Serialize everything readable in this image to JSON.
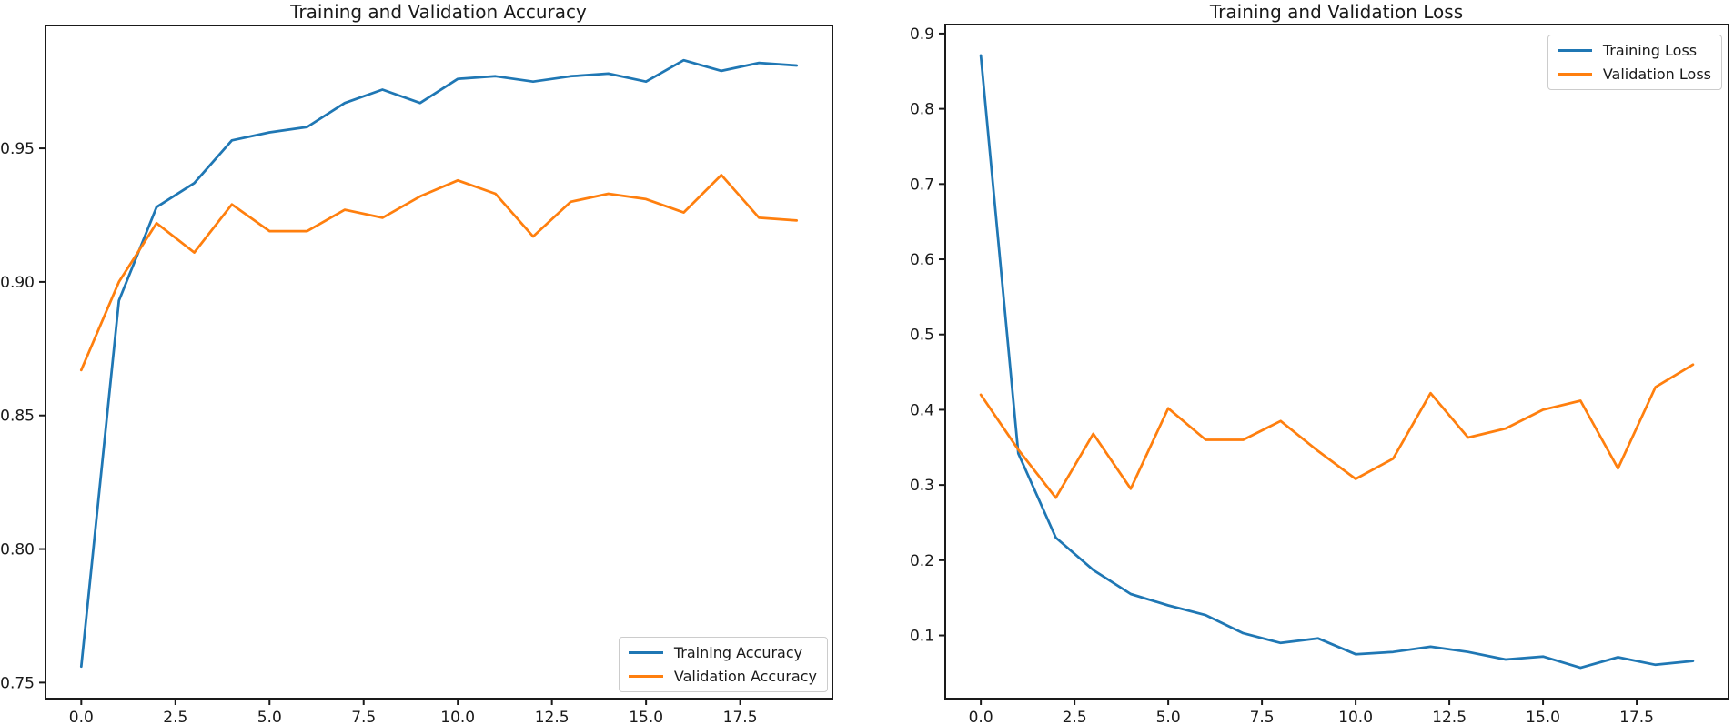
{
  "figure": {
    "background": "#ffffff",
    "text_color": "#1a1a1a",
    "accent_blue": "#1f77b4",
    "accent_orange": "#ff7f0e"
  },
  "chart_data": [
    {
      "type": "line",
      "title": "Training and Validation Accuracy",
      "xlabel": "",
      "ylabel": "",
      "grid": false,
      "legend_position": "lower right",
      "x": [
        0,
        1,
        2,
        3,
        4,
        5,
        6,
        7,
        8,
        9,
        10,
        11,
        12,
        13,
        14,
        15,
        16,
        17,
        18,
        19
      ],
      "series": [
        {
          "name": "Training Accuracy",
          "color": "#1f77b4",
          "values": [
            0.756,
            0.893,
            0.928,
            0.937,
            0.953,
            0.956,
            0.958,
            0.967,
            0.972,
            0.967,
            0.976,
            0.977,
            0.975,
            0.977,
            0.978,
            0.975,
            0.983,
            0.979,
            0.982,
            0.981
          ]
        },
        {
          "name": "Validation Accuracy",
          "color": "#ff7f0e",
          "values": [
            0.867,
            0.9,
            0.922,
            0.911,
            0.929,
            0.919,
            0.919,
            0.927,
            0.924,
            0.932,
            0.938,
            0.933,
            0.917,
            0.93,
            0.933,
            0.931,
            0.926,
            0.94,
            0.924,
            0.923
          ]
        }
      ],
      "xlim": [
        -0.95,
        19.95
      ],
      "ylim": [
        0.744,
        0.996
      ],
      "xticks": [
        "0.0",
        "2.5",
        "5.0",
        "7.5",
        "10.0",
        "12.5",
        "15.0",
        "17.5"
      ],
      "yticks": [
        "0.75",
        "0.80",
        "0.85",
        "0.90",
        "0.95"
      ]
    },
    {
      "type": "line",
      "title": "Training and Validation Loss",
      "xlabel": "",
      "ylabel": "",
      "grid": false,
      "legend_position": "upper right",
      "x": [
        0,
        1,
        2,
        3,
        4,
        5,
        6,
        7,
        8,
        9,
        10,
        11,
        12,
        13,
        14,
        15,
        16,
        17,
        18,
        19
      ],
      "series": [
        {
          "name": "Training Loss",
          "color": "#1f77b4",
          "values": [
            0.871,
            0.342,
            0.23,
            0.187,
            0.155,
            0.14,
            0.127,
            0.103,
            0.09,
            0.096,
            0.075,
            0.078,
            0.085,
            0.078,
            0.068,
            0.072,
            0.057,
            0.071,
            0.061,
            0.066
          ]
        },
        {
          "name": "Validation Loss",
          "color": "#ff7f0e",
          "values": [
            0.42,
            0.347,
            0.283,
            0.368,
            0.295,
            0.402,
            0.36,
            0.36,
            0.385,
            0.345,
            0.308,
            0.335,
            0.422,
            0.363,
            0.375,
            0.4,
            0.412,
            0.322,
            0.43,
            0.46
          ]
        }
      ],
      "xlim": [
        -0.95,
        19.95
      ],
      "ylim": [
        0.016,
        0.912
      ],
      "xticks": [
        "0.0",
        "2.5",
        "5.0",
        "7.5",
        "10.0",
        "12.5",
        "15.0",
        "17.5"
      ],
      "yticks": [
        "0.1",
        "0.2",
        "0.3",
        "0.4",
        "0.5",
        "0.6",
        "0.7",
        "0.8",
        "0.9"
      ]
    }
  ]
}
